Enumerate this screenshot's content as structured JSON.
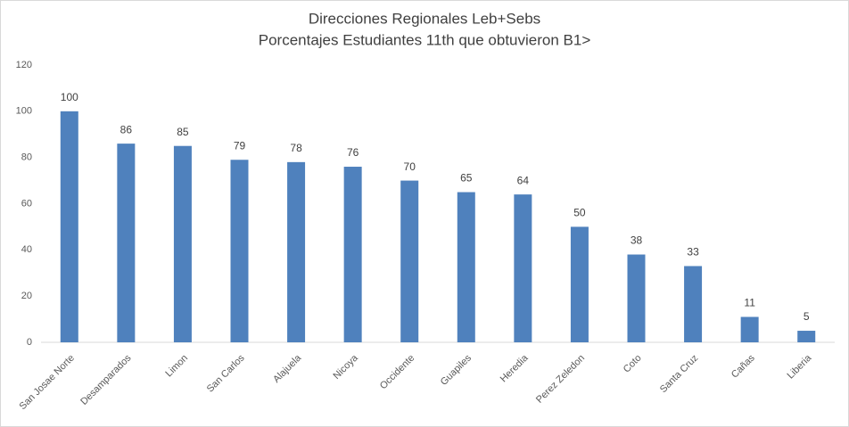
{
  "chart_data": {
    "type": "bar",
    "title": "Direcciones Regionales Leb+Sebs",
    "subtitle": "Porcentajes Estudiantes 11th que obtuvieron B1>",
    "categories": [
      "San Josae Norte",
      "Desamparados",
      "Limon",
      "San Carlos",
      "Alajuela",
      "Nicoya",
      "Occidente",
      "Guapiles",
      "Heredia",
      "Perez Zeledon",
      "Coto",
      "Santa Cruz",
      "Cañas",
      "Liberia"
    ],
    "values": [
      100,
      86,
      85,
      79,
      78,
      76,
      70,
      65,
      64,
      50,
      38,
      33,
      11,
      5
    ],
    "color": "#4f81bd",
    "ylim": [
      0,
      120
    ],
    "yticks": [
      0,
      20,
      40,
      60,
      80,
      100,
      120
    ],
    "grid": false,
    "data_labels": true
  }
}
